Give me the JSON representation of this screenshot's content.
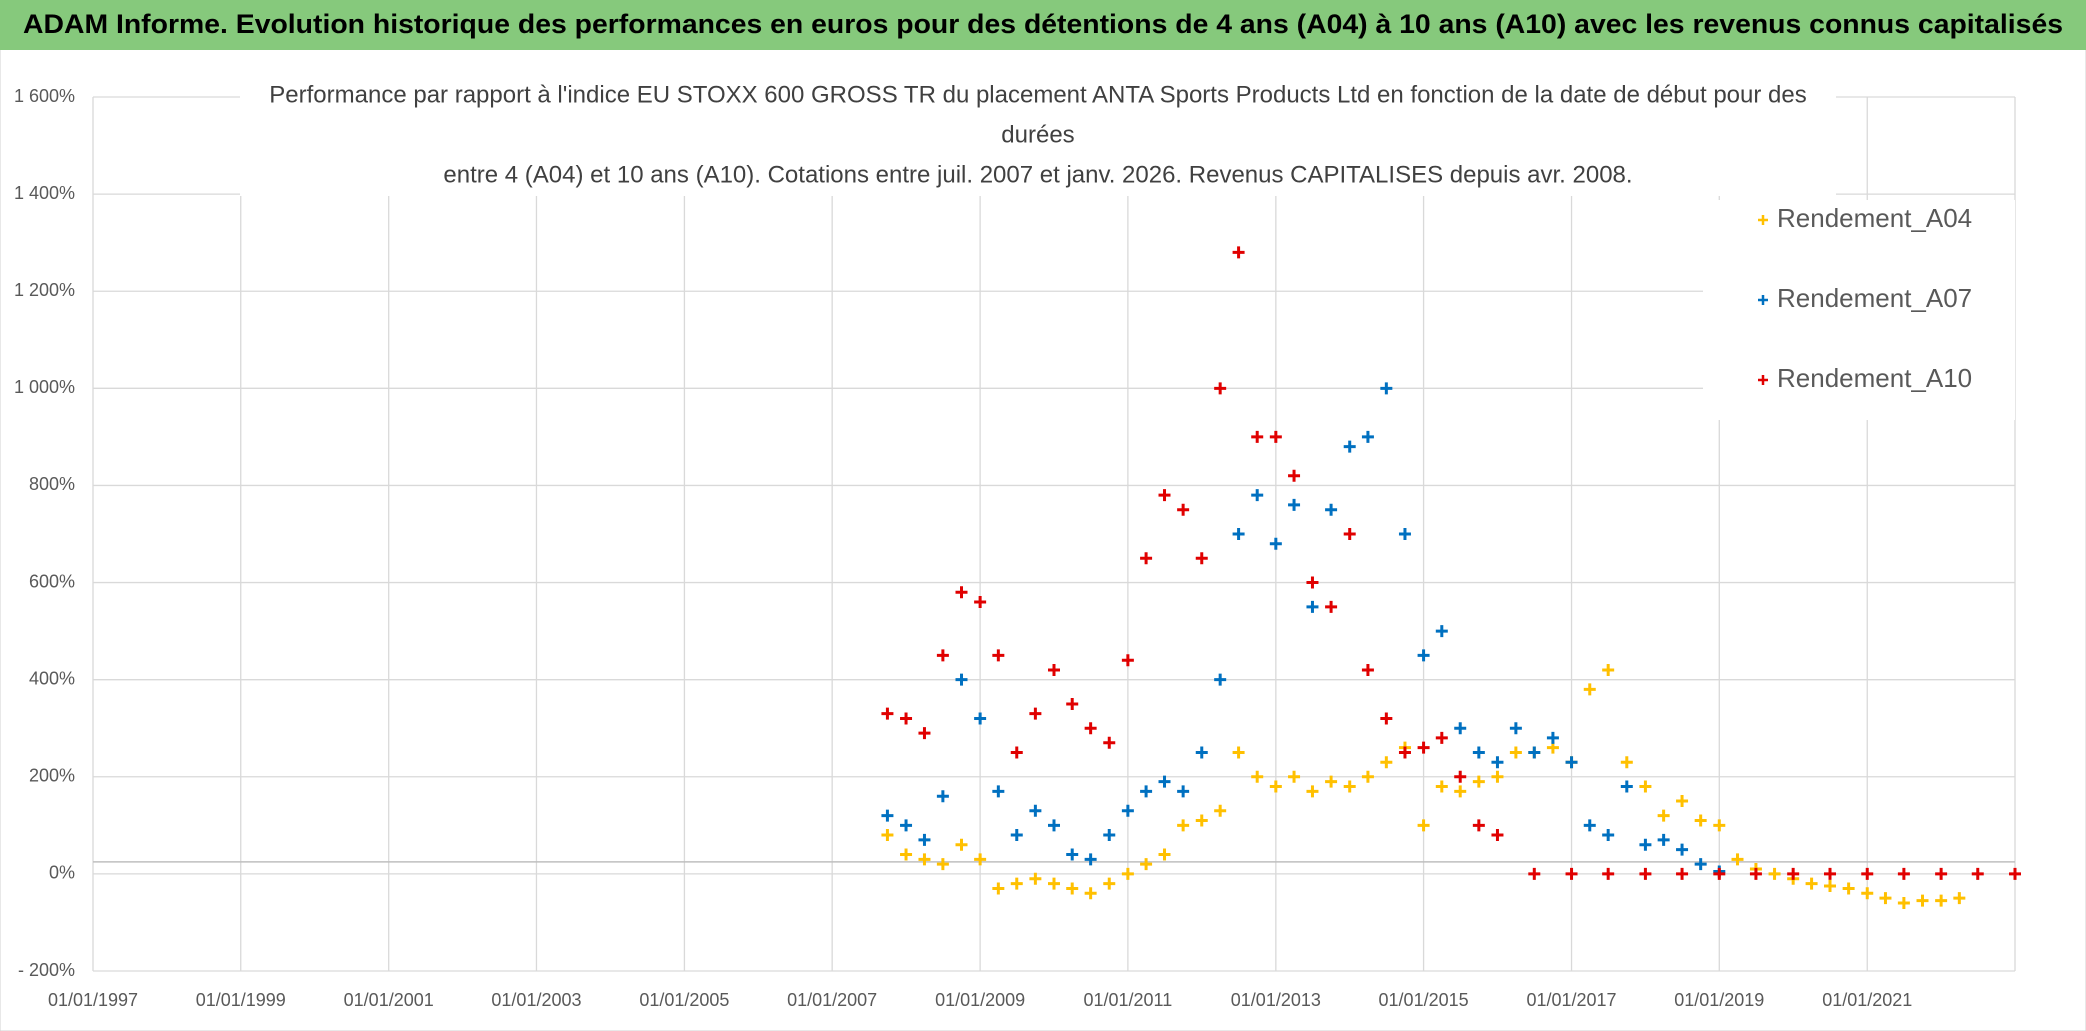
{
  "header": {
    "title": "ADAM Informe. Evolution historique des performances en euros pour des détentions de 4 ans (A04) à 10 ans (A10) avec les revenus connus capitalisés"
  },
  "chart_data": {
    "type": "scatter",
    "title_lines": [
      "Performance par rapport à l'indice EU STOXX 600 GROSS TR  du placement ANTA Sports Products Ltd en fonction de la date de début pour des",
      "durées",
      "entre 4 (A04) et 10 ans (A10). Cotations entre juil. 2007 et janv. 2026. Revenus CAPITALISES depuis avr. 2008."
    ],
    "xlim": [
      "1997-01-01",
      "2023-01-01"
    ],
    "xticks": [
      {
        "value": "1997-01-01",
        "label": "01/01/1997"
      },
      {
        "value": "1999-01-01",
        "label": "01/01/1999"
      },
      {
        "value": "2001-01-01",
        "label": "01/01/2001"
      },
      {
        "value": "2003-01-01",
        "label": "01/01/2003"
      },
      {
        "value": "2005-01-01",
        "label": "01/01/2005"
      },
      {
        "value": "2007-01-01",
        "label": "01/01/2007"
      },
      {
        "value": "2009-01-01",
        "label": "01/01/2009"
      },
      {
        "value": "2011-01-01",
        "label": "01/01/2011"
      },
      {
        "value": "2013-01-01",
        "label": "01/01/2013"
      },
      {
        "value": "2015-01-01",
        "label": "01/01/2015"
      },
      {
        "value": "2017-01-01",
        "label": "01/01/2017"
      },
      {
        "value": "2019-01-01",
        "label": "01/01/2019"
      },
      {
        "value": "2021-01-01",
        "label": "01/01/2021"
      }
    ],
    "ylim": [
      -200,
      1600
    ],
    "yticks": [
      {
        "value": -200,
        "label": "- 200%"
      },
      {
        "value": 0,
        "label": "0%"
      },
      {
        "value": 200,
        "label": "200%"
      },
      {
        "value": 400,
        "label": "400%"
      },
      {
        "value": 600,
        "label": "600%"
      },
      {
        "value": 800,
        "label": "800%"
      },
      {
        "value": 1000,
        "label": "1 000%"
      },
      {
        "value": 1200,
        "label": "1 200%"
      },
      {
        "value": 1400,
        "label": "1 400%"
      },
      {
        "value": 1600,
        "label": "1 600%"
      }
    ],
    "grid": true,
    "legend": "upper right",
    "series": [
      {
        "name": "Rendement_A04",
        "color": "#ffc000",
        "x": [
          "2007-10-01",
          "2008-01-01",
          "2008-04-01",
          "2008-07-01",
          "2008-10-01",
          "2009-01-01",
          "2009-04-01",
          "2009-07-01",
          "2009-10-01",
          "2010-01-01",
          "2010-04-01",
          "2010-07-01",
          "2010-10-01",
          "2011-01-01",
          "2011-04-01",
          "2011-07-01",
          "2011-10-01",
          "2012-01-01",
          "2012-04-01",
          "2012-07-01",
          "2012-10-01",
          "2013-01-01",
          "2013-04-01",
          "2013-07-01",
          "2013-10-01",
          "2014-01-01",
          "2014-04-01",
          "2014-07-01",
          "2014-10-01",
          "2015-01-01",
          "2015-04-01",
          "2015-07-01",
          "2015-10-01",
          "2016-01-01",
          "2016-04-01",
          "2016-07-01",
          "2016-10-01",
          "2017-01-01",
          "2017-04-01",
          "2017-07-01",
          "2017-10-01",
          "2018-01-01",
          "2018-04-01",
          "2018-07-01",
          "2018-10-01",
          "2019-01-01",
          "2019-04-01",
          "2019-07-01",
          "2019-10-01",
          "2020-01-01",
          "2020-04-01",
          "2020-07-01",
          "2020-10-01",
          "2021-01-01",
          "2021-04-01",
          "2021-07-01",
          "2021-10-01",
          "2022-01-01",
          "2022-04-01"
        ],
        "values": [
          80,
          40,
          30,
          20,
          60,
          30,
          -30,
          -20,
          -10,
          -20,
          -30,
          -40,
          -20,
          0,
          20,
          40,
          100,
          110,
          130,
          250,
          200,
          180,
          200,
          170,
          190,
          180,
          200,
          230,
          260,
          100,
          180,
          170,
          190,
          200,
          250,
          250,
          260,
          230,
          380,
          420,
          230,
          180,
          120,
          150,
          110,
          100,
          30,
          10,
          0,
          -10,
          -20,
          -25,
          -30,
          -40,
          -50,
          -60,
          -55,
          -55,
          -50
        ]
      },
      {
        "name": "Rendement_A07",
        "color": "#0070c0",
        "x": [
          "2007-10-01",
          "2008-01-01",
          "2008-04-01",
          "2008-07-01",
          "2008-10-01",
          "2009-01-01",
          "2009-04-01",
          "2009-07-01",
          "2009-10-01",
          "2010-01-01",
          "2010-04-01",
          "2010-07-01",
          "2010-10-01",
          "2011-01-01",
          "2011-04-01",
          "2011-07-01",
          "2011-10-01",
          "2012-01-01",
          "2012-04-01",
          "2012-07-01",
          "2012-10-01",
          "2013-01-01",
          "2013-04-01",
          "2013-07-01",
          "2013-10-01",
          "2014-01-01",
          "2014-04-01",
          "2014-07-01",
          "2014-10-01",
          "2015-01-01",
          "2015-04-01",
          "2015-07-01",
          "2015-10-01",
          "2016-01-01",
          "2016-04-01",
          "2016-07-01",
          "2016-10-01",
          "2017-01-01",
          "2017-04-01",
          "2017-07-01",
          "2017-10-01",
          "2018-01-01",
          "2018-04-01",
          "2018-07-01",
          "2018-10-01",
          "2019-01-01"
        ],
        "values": [
          120,
          100,
          70,
          160,
          400,
          320,
          170,
          80,
          130,
          100,
          40,
          30,
          80,
          130,
          170,
          190,
          170,
          250,
          400,
          700,
          780,
          680,
          760,
          550,
          750,
          880,
          900,
          1000,
          700,
          450,
          500,
          300,
          250,
          230,
          300,
          250,
          280,
          230,
          100,
          80,
          180,
          60,
          70,
          50,
          20,
          5
        ]
      },
      {
        "name": "Rendement_A10",
        "color": "#e00000",
        "x": [
          "2007-10-01",
          "2008-01-01",
          "2008-04-01",
          "2008-07-01",
          "2008-10-01",
          "2009-01-01",
          "2009-04-01",
          "2009-07-01",
          "2009-10-01",
          "2010-01-01",
          "2010-04-01",
          "2010-07-01",
          "2010-10-01",
          "2011-01-01",
          "2011-04-01",
          "2011-07-01",
          "2011-10-01",
          "2012-01-01",
          "2012-04-01",
          "2012-07-01",
          "2012-10-01",
          "2013-01-01",
          "2013-04-01",
          "2013-07-01",
          "2013-10-01",
          "2014-01-01",
          "2014-04-01",
          "2014-07-01",
          "2014-10-01",
          "2015-01-01",
          "2015-04-01",
          "2015-07-01",
          "2015-10-01",
          "2016-01-01",
          "2016-07-01",
          "2017-01-01",
          "2017-07-01",
          "2018-01-01",
          "2018-07-01",
          "2019-01-01",
          "2019-07-01",
          "2020-01-01",
          "2020-07-01",
          "2021-01-01",
          "2021-07-01",
          "2022-01-01",
          "2022-07-01",
          "2023-01-01"
        ],
        "values": [
          330,
          320,
          290,
          450,
          580,
          560,
          450,
          250,
          330,
          420,
          350,
          300,
          270,
          440,
          650,
          780,
          750,
          650,
          1000,
          1280,
          900,
          900,
          820,
          600,
          550,
          700,
          420,
          320,
          250,
          260,
          280,
          200,
          100,
          80,
          0,
          0,
          0,
          0,
          0,
          0,
          0,
          0,
          0,
          0,
          0,
          0,
          0,
          0
        ]
      }
    ]
  }
}
